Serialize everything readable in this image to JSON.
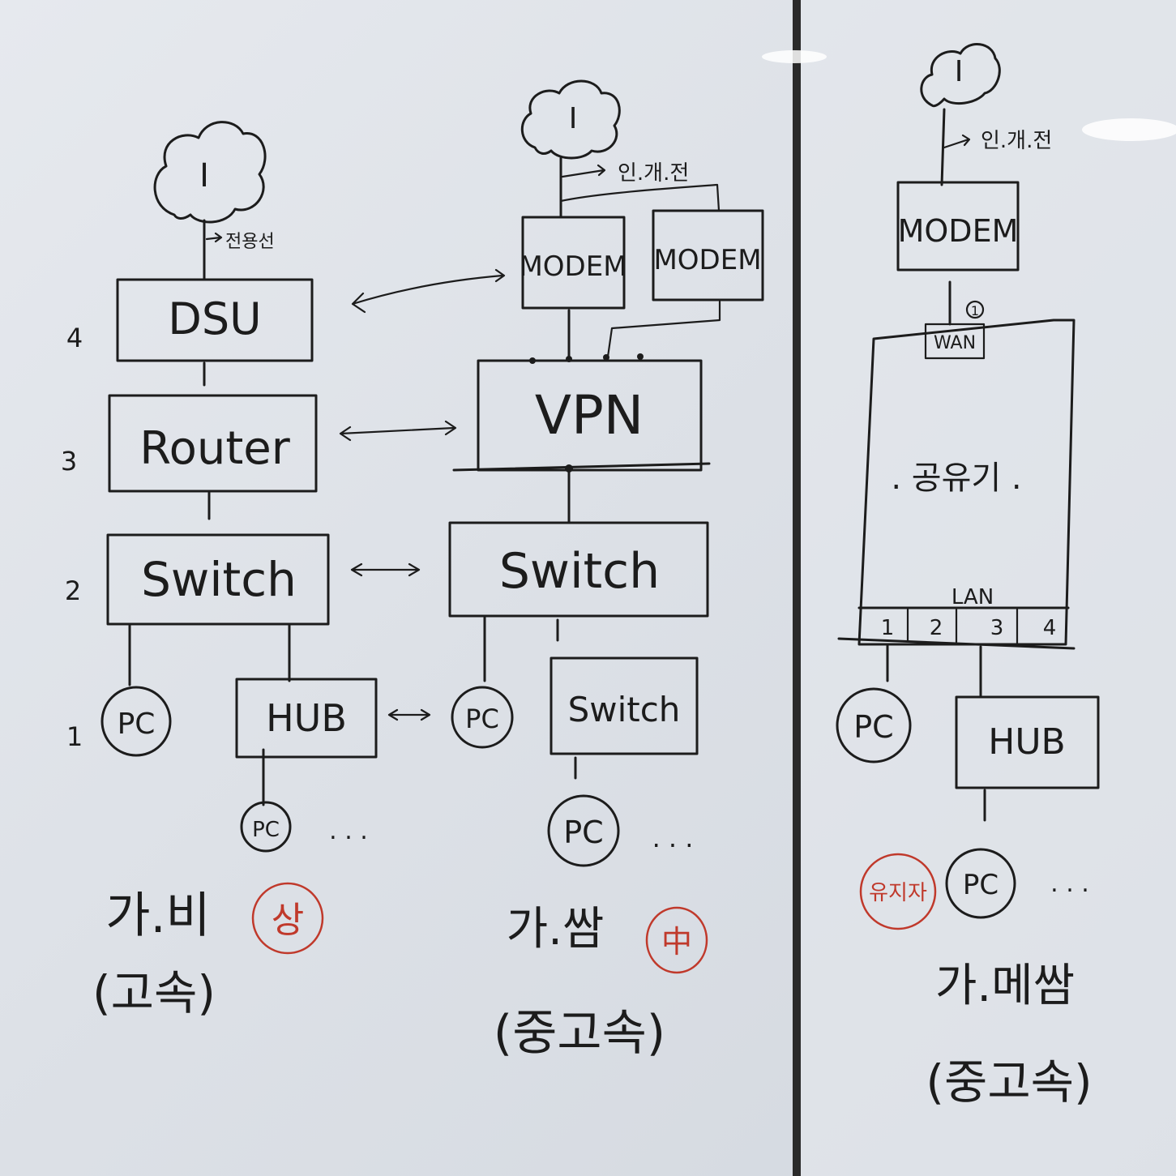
{
  "left_diagram": {
    "cloud": "I",
    "line_label": "전용선",
    "boxes": {
      "dsu": "DSU",
      "router": "Router",
      "switch": "Switch",
      "hub": "HUB"
    },
    "layers": [
      "4",
      "3",
      "2",
      "1"
    ],
    "pc": "PC",
    "ellipsis": ". . .",
    "caption": "가.비",
    "mark": "상",
    "speed": "(고속)"
  },
  "middle_diagram": {
    "cloud": "I",
    "line_label": "인.개.전",
    "boxes": {
      "modem_1": "MODEM",
      "modem_2": "MODEM",
      "vpn": "VPN",
      "switch": "Switch",
      "switch_small": "Switch"
    },
    "pc": "PC",
    "ellipsis": ". . .",
    "caption": "가.쌈",
    "mark": "中",
    "speed": "(중고속)"
  },
  "right_diagram": {
    "cloud": "I",
    "line_label": "인.개.전",
    "boxes": {
      "modem": "MODEM",
      "wan": "WAN",
      "router": ". 공유기 .",
      "lan": "LAN",
      "hub": "HUB"
    },
    "wan_port": "1",
    "lan_ports": [
      "1",
      "2",
      "3",
      "4"
    ],
    "pc": "PC",
    "ellipsis": ". . .",
    "mark": "유지자",
    "caption": "가.메쌈",
    "speed": "(중고속)"
  },
  "colors": {
    "ink": "#1c1c1c",
    "red_marker": "#c0392b",
    "board": "#dde1e7"
  }
}
